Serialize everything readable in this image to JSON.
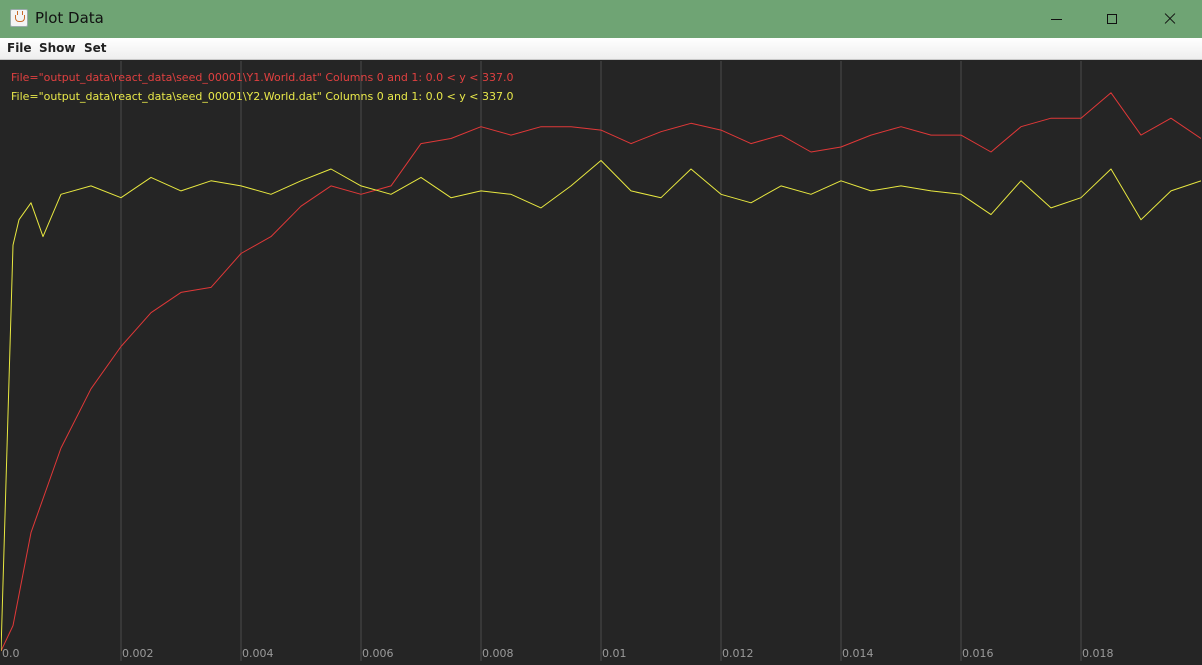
{
  "window": {
    "title": "Plot Data"
  },
  "menu": {
    "items": [
      "File",
      "Show",
      "Set"
    ]
  },
  "legend": {
    "series1": "File=\"output_data\\react_data\\seed_00001\\Y1.World.dat\" Columns 0 and 1: 0.0 < y < 337.0",
    "series2": "File=\"output_data\\react_data\\seed_00001\\Y2.World.dat\" Columns 0 and 1: 0.0 < y < 337.0"
  },
  "chart_data": {
    "type": "line",
    "xlim": [
      0,
      0.02
    ],
    "ylim": [
      0,
      337
    ],
    "grid": true,
    "grid_color": "#4a4a4a",
    "background": "#252525",
    "x_ticks": [
      {
        "value": 0,
        "label": "0.0"
      },
      {
        "value": 0.002,
        "label": "0.002"
      },
      {
        "value": 0.004,
        "label": "0.004"
      },
      {
        "value": 0.006,
        "label": "0.006"
      },
      {
        "value": 0.008,
        "label": "0.008"
      },
      {
        "value": 0.01,
        "label": "0.01"
      },
      {
        "value": 0.012,
        "label": "0.012"
      },
      {
        "value": 0.014,
        "label": "0.014"
      },
      {
        "value": 0.016,
        "label": "0.016"
      },
      {
        "value": 0.018,
        "label": "0.018"
      }
    ],
    "series": [
      {
        "color": "#e03838",
        "x": [
          0,
          0.0002,
          0.0005,
          0.001,
          0.0015,
          0.002,
          0.0025,
          0.003,
          0.0035,
          0.004,
          0.0045,
          0.005,
          0.0055,
          0.006,
          0.0065,
          0.007,
          0.0075,
          0.008,
          0.0085,
          0.009,
          0.0095,
          0.01,
          0.0105,
          0.011,
          0.0115,
          0.012,
          0.0125,
          0.013,
          0.0135,
          0.014,
          0.0145,
          0.015,
          0.0155,
          0.016,
          0.0165,
          0.017,
          0.0175,
          0.018,
          0.0185,
          0.019,
          0.0195,
          0.02
        ],
        "y": [
          0,
          15,
          70,
          120,
          155,
          180,
          200,
          212,
          215,
          235,
          245,
          263,
          275,
          270,
          275,
          300,
          303,
          310,
          305,
          310,
          310,
          308,
          300,
          307,
          312,
          308,
          300,
          305,
          295,
          298,
          305,
          310,
          305,
          305,
          295,
          310,
          315,
          315,
          330,
          305,
          315,
          303
        ]
      },
      {
        "color": "#e8e840",
        "x": [
          0,
          0.0001,
          0.0002,
          0.0003,
          0.0005,
          0.0007,
          0.001,
          0.0015,
          0.002,
          0.0025,
          0.003,
          0.0035,
          0.004,
          0.0045,
          0.005,
          0.0055,
          0.006,
          0.0065,
          0.007,
          0.0075,
          0.008,
          0.0085,
          0.009,
          0.0095,
          0.01,
          0.0105,
          0.011,
          0.0115,
          0.012,
          0.0125,
          0.013,
          0.0135,
          0.014,
          0.0145,
          0.015,
          0.0155,
          0.016,
          0.0165,
          0.017,
          0.0175,
          0.018,
          0.0185,
          0.019,
          0.0195,
          0.02
        ],
        "y": [
          0,
          120,
          240,
          255,
          265,
          245,
          270,
          275,
          268,
          280,
          272,
          278,
          275,
          270,
          278,
          285,
          275,
          270,
          280,
          268,
          272,
          270,
          262,
          275,
          290,
          272,
          268,
          285,
          270,
          265,
          275,
          270,
          278,
          272,
          275,
          272,
          270,
          258,
          278,
          262,
          268,
          285,
          255,
          272,
          278
        ]
      }
    ]
  }
}
